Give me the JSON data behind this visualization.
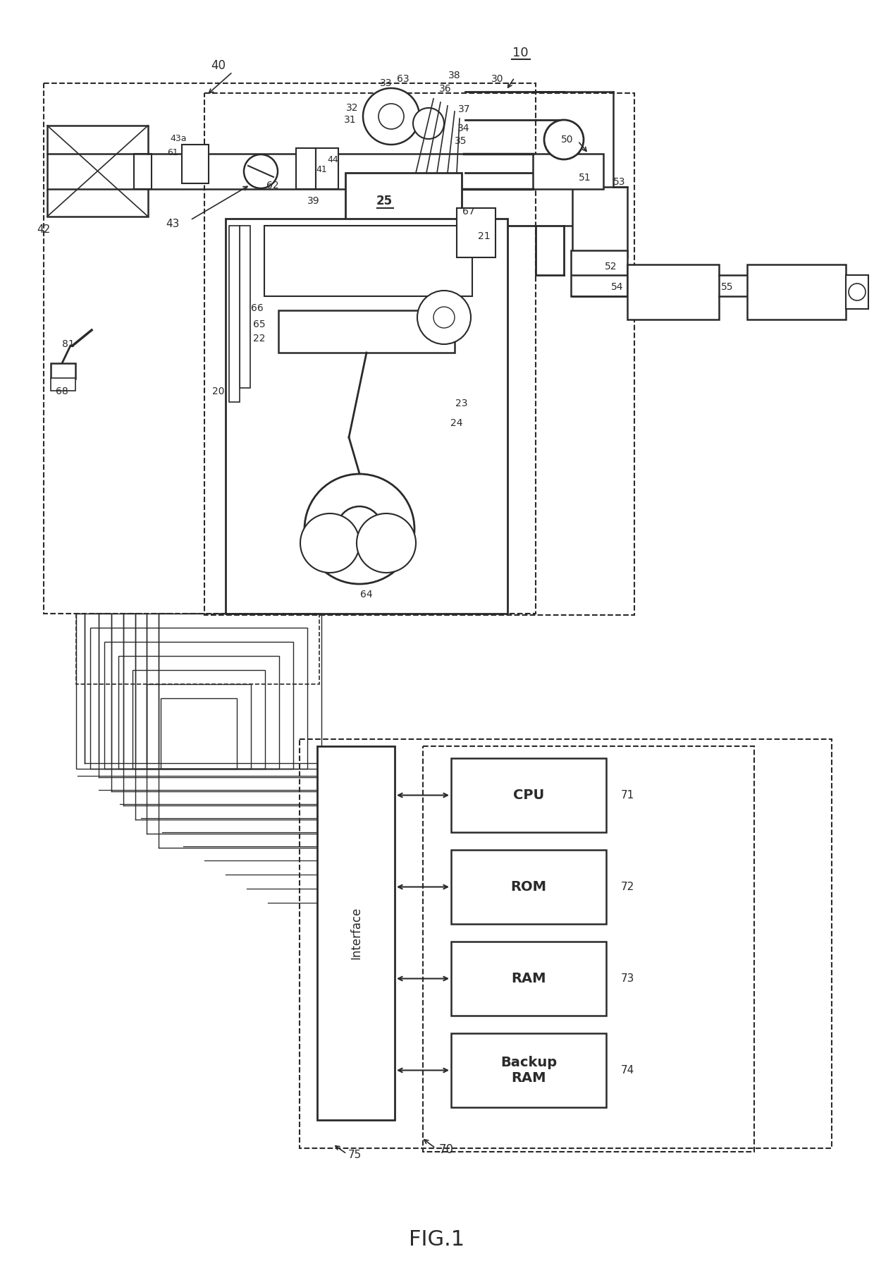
{
  "bg_color": "#ffffff",
  "lc": "#2a2a2a",
  "fig_label": "FIG.1",
  "ecm_boxes": [
    {
      "label": "CPU",
      "ref": "71"
    },
    {
      "label": "ROM",
      "ref": "72"
    },
    {
      "label": "RAM",
      "ref": "73"
    },
    {
      "label": "Backup\nRAM",
      "ref": "74"
    }
  ],
  "interface_text": "Interface"
}
